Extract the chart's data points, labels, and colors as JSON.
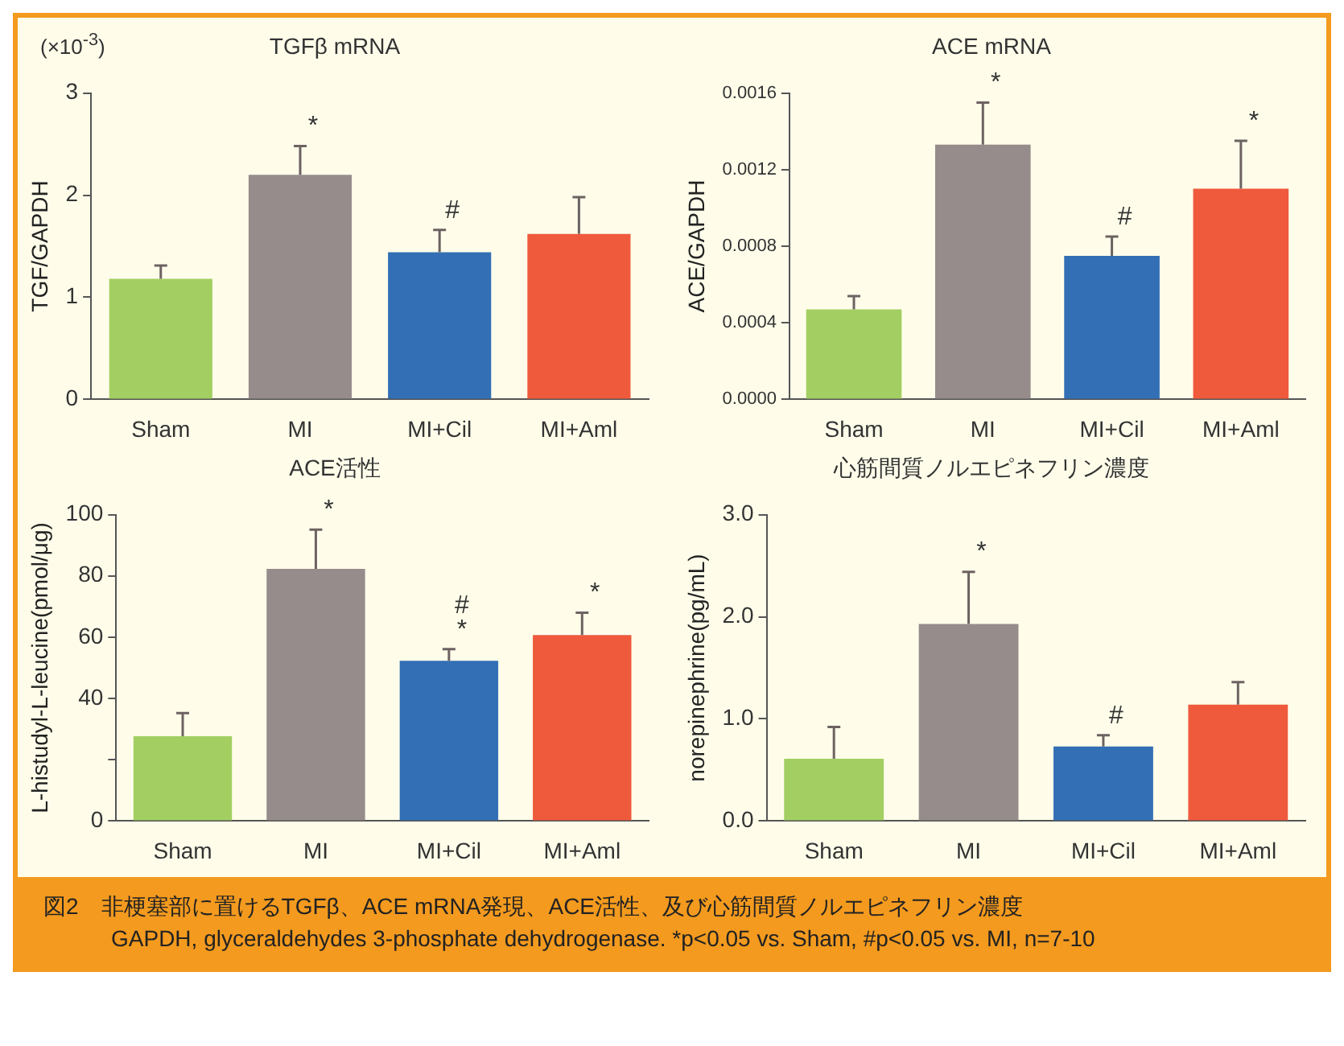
{
  "chart_data": [
    {
      "type": "bar",
      "title": "TGFβ mRNA",
      "ylabel": "TGF/GAPDH",
      "categories": [
        "Sham",
        "MI",
        "MI+Cil",
        "MI+Aml"
      ],
      "values": [
        1.18,
        2.2,
        1.44,
        1.62
      ],
      "colors": [
        "#a3cf62",
        "#968c8c",
        "#336fb5",
        "#ef5a3c"
      ],
      "errors": [
        [
          1.18,
          1.31
        ],
        [
          2.2,
          2.48
        ],
        [
          1.44,
          1.66
        ],
        [
          1.62,
          1.98
        ]
      ],
      "ylim": [
        0,
        3
      ],
      "yticks": [
        0,
        1,
        2,
        3
      ],
      "grid": false,
      "annotations": [
        "(×10$^{-3}$)",
        {
          "text": "*",
          "x": "MI",
          "y": 2.48
        },
        {
          "text": "#",
          "x": "MI+Cil",
          "y": 1.66
        }
      ]
    },
    {
      "type": "bar",
      "title": "ACE mRNA",
      "ylabel": "ACE/GAPDH",
      "categories": [
        "Sham",
        "MI",
        "MI+Cil",
        "MI+Aml"
      ],
      "values": [
        0.00047,
        0.00133,
        0.00075,
        0.0011
      ],
      "colors": [
        "#a3cf62",
        "#968c8c",
        "#336fb5",
        "#ef5a3c"
      ],
      "errors": [
        [
          0.00047,
          0.00054
        ],
        [
          0.00133,
          0.00155
        ],
        [
          0.00075,
          0.00085
        ],
        [
          0.0011,
          0.00135
        ]
      ],
      "ylim": [
        0,
        0.0016
      ],
      "yticks": [
        {
          "value": 0,
          "label": "0.0000"
        },
        {
          "value": 0.0004,
          "label": "0.0004"
        },
        {
          "value": 0.0008,
          "label": "0.0008"
        },
        {
          "value": 0.0012,
          "label": "0.0012"
        },
        {
          "value": 0.0016,
          "label": "0.0016"
        }
      ],
      "grid": false,
      "annotations": [
        {
          "text": "*",
          "x": "MI",
          "y": 0.00155
        },
        {
          "text": "#",
          "x": "MI+Cil",
          "y": 0.00085
        },
        {
          "text": "*",
          "x": "MI+Aml",
          "y": 0.00135
        }
      ]
    },
    {
      "type": "bar",
      "title": "ACE活性",
      "ylabel": "L-histudyl-L-leucine(pmol/μg)",
      "categories": [
        "Sham",
        "MI",
        "MI+Cil",
        "MI+Aml"
      ],
      "values": [
        27.7,
        82.3,
        52.3,
        60.7
      ],
      "colors": [
        "#a3cf62",
        "#968c8c",
        "#336fb5",
        "#ef5a3c"
      ],
      "errors": [
        [
          27.7,
          35.2
        ],
        [
          82.3,
          95.1
        ],
        [
          52.3,
          56.1
        ],
        [
          60.7,
          68
        ]
      ],
      "ylim": [
        0,
        100
      ],
      "yticks": [
        0,
        {
          "value": 20,
          "label": null
        },
        40,
        60,
        80,
        100
      ],
      "grid": false,
      "annotations": [
        {
          "text": "*",
          "x": "MI",
          "y": 95.1
        },
        {
          "text": "*",
          "x": "MI+Cil",
          "y": 56.1
        },
        {
          "text": "#",
          "x": "MI+Cil",
          "y": 56.1
        },
        {
          "text": "*",
          "x": "MI+Aml",
          "y": 68
        }
      ]
    },
    {
      "type": "bar",
      "title": "心筋間質ノルエピネフリン濃度",
      "ylabel": "norepinephrine(pg/mL)",
      "categories": [
        "Sham",
        "MI",
        "MI+Cil",
        "MI+Aml"
      ],
      "values": [
        0.61,
        1.93,
        0.73,
        1.14
      ],
      "colors": [
        "#a3cf62",
        "#968c8c",
        "#336fb5",
        "#ef5a3c"
      ],
      "errors": [
        [
          0.61,
          0.92
        ],
        [
          1.93,
          2.44
        ],
        [
          0.73,
          0.84
        ],
        [
          1.14,
          1.36
        ]
      ],
      "ylim": [
        0,
        3
      ],
      "yticks": [
        {
          "value": 0,
          "label": "0.0"
        },
        {
          "value": 1,
          "label": "1.0"
        },
        {
          "value": 2,
          "label": "2.0"
        },
        {
          "value": 3,
          "label": "3.0"
        }
      ],
      "grid": false,
      "annotations": [
        {
          "text": "*",
          "x": "MI",
          "y": 2.44
        },
        {
          "text": "#",
          "x": "MI+Cil",
          "y": 0.84
        },
        "図2　非梗塞部に置けるTGFβ、ACE mRNA発現、ACE活性、及び心筋間質ノルエピネフリン濃度",
        "GAPDH, glyceraldehydes 3-phosphate dehydrogenase. *p<0.05 vs. Sham, #p<0.05 vs. MI, n=7-10"
      ]
    }
  ]
}
